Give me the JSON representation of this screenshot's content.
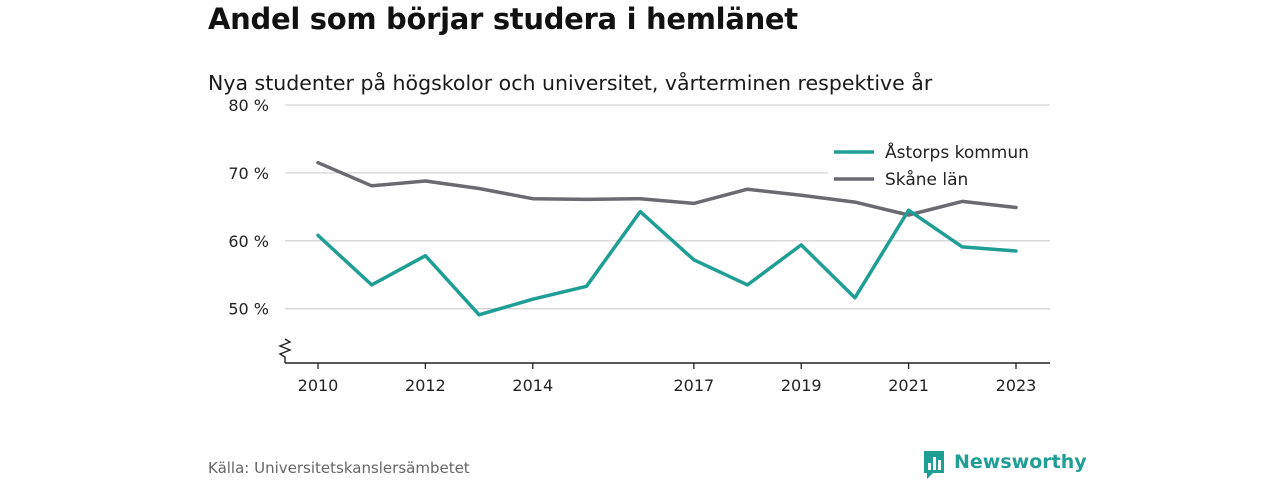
{
  "title": "Andel som börjar studera i hemlänet",
  "subtitle": "Nya studenter på högskolor och universitet, vårterminen respektive år",
  "source": "Källa: Universitetskanslersämbetet",
  "brand": {
    "name": "Newsworthy",
    "color": "#1f9e96"
  },
  "chart_data": {
    "type": "line",
    "x_tick_labels": [
      "2010",
      "2012",
      "2014",
      "2017",
      "2019",
      "2021",
      "2023"
    ],
    "y_tick_labels": [
      "50 %",
      "60 %",
      "70 %",
      "80 %"
    ],
    "y_ticks": [
      50,
      60,
      70,
      80
    ],
    "ylim": [
      42,
      80
    ],
    "xlim": [
      2010,
      2023
    ],
    "axis_break": true,
    "grid": true,
    "legend_position": "top-right",
    "series": [
      {
        "name": "Åstorps kommun",
        "color": "#1f9e96",
        "x": [
          2010,
          2011,
          2012,
          2013,
          2014,
          2015,
          2016,
          2017,
          2018,
          2019,
          2020,
          2021,
          2022,
          2023
        ],
        "values": [
          60.8,
          53.5,
          57.8,
          49.1,
          51.4,
          53.3,
          64.3,
          57.2,
          53.5,
          59.4,
          51.6,
          64.5,
          59.1,
          58.5
        ]
      },
      {
        "name": "Skåne län",
        "color": "#6b6a70",
        "x": [
          2010,
          2011,
          2012,
          2013,
          2014,
          2015,
          2016,
          2017,
          2018,
          2019,
          2020,
          2021,
          2022,
          2023
        ],
        "values": [
          71.5,
          68.1,
          68.8,
          67.7,
          66.2,
          66.1,
          66.2,
          65.5,
          67.6,
          66.7,
          65.7,
          63.8,
          65.8,
          64.9
        ]
      }
    ]
  }
}
